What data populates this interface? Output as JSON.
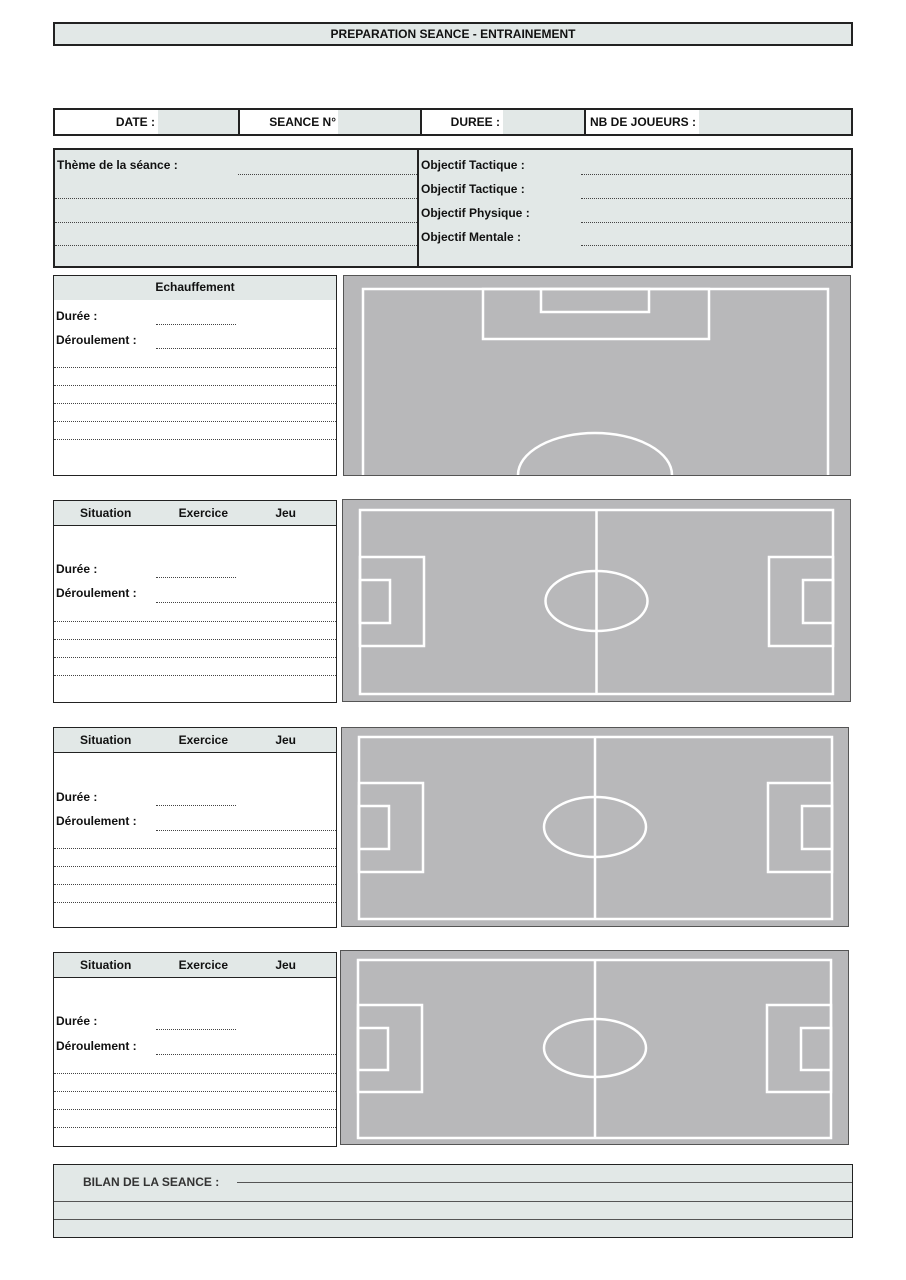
{
  "title": "PREPARATION SEANCE - ENTRAINEMENT",
  "info": {
    "date_label": "DATE :",
    "seance_label": "SEANCE N°",
    "duree_label": "DUREE :",
    "joueurs_label": "NB DE JOUEURS :"
  },
  "theme": {
    "theme_label": "Thème de la séance :",
    "objectives": [
      "Objectif Tactique :",
      "Objectif Tactique :",
      "Objectif Physique :",
      "Objectif Mentale :"
    ]
  },
  "warmup": {
    "title": "Echauffement",
    "duree_label": "Durée :",
    "deroulement_label": "Déroulement :"
  },
  "exercise_blocks": [
    {
      "col1": "Situation",
      "col2": "Exercice",
      "col3": "Jeu",
      "duree_label": "Durée :",
      "deroulement_label": "Déroulement :"
    },
    {
      "col1": "Situation",
      "col2": "Exercice",
      "col3": "Jeu",
      "duree_label": "Durée :",
      "deroulement_label": "Déroulement :"
    },
    {
      "col1": "Situation",
      "col2": "Exercice",
      "col3": "Jeu",
      "duree_label": "Durée :",
      "deroulement_label": "Déroulement :"
    }
  ],
  "bilan": {
    "label": "BILAN DE LA SEANCE :"
  },
  "colors": {
    "header_fill": "#e2e8e7",
    "pitch_fill": "#b8b8ba",
    "pitch_lines": "#ffffff"
  }
}
